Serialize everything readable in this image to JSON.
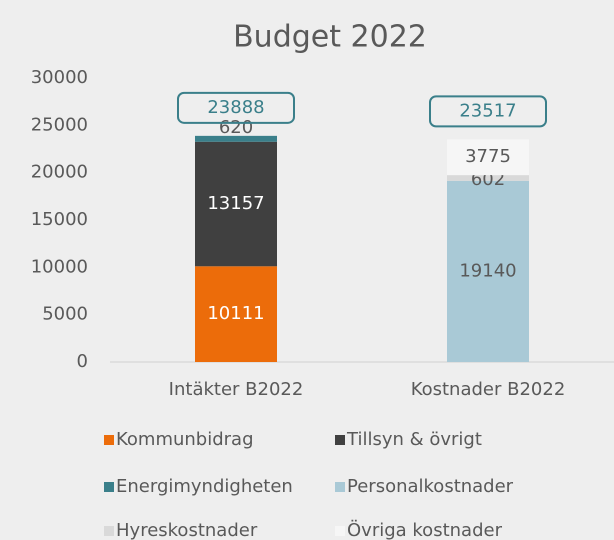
{
  "chart_data": {
    "type": "stacked_bar",
    "title": "Budget 2022",
    "categories": [
      "Intäkter B2022",
      "Kostnader B2022"
    ],
    "series": [
      {
        "name": "Kommunbidrag",
        "color": "#ec6c0a",
        "values": [
          10111,
          null
        ]
      },
      {
        "name": "Tillsyn & övrigt",
        "color": "#404040",
        "values": [
          13157,
          null
        ]
      },
      {
        "name": "Energimyndigheten",
        "color": "#3a7f8a",
        "values": [
          620,
          null
        ]
      },
      {
        "name": "Personalkostnader",
        "color": "#a9c9d6",
        "values": [
          null,
          19140
        ]
      },
      {
        "name": "Hyreskostnader",
        "color": "#d9d9d9",
        "values": [
          null,
          602
        ]
      },
      {
        "name": "Övriga kostnader",
        "color": "#f6f6f6",
        "values": [
          null,
          3775
        ]
      }
    ],
    "totals": [
      23888,
      23517
    ],
    "ylim": [
      0,
      30000
    ],
    "yticks": [
      0,
      5000,
      10000,
      15000,
      20000,
      25000,
      30000
    ],
    "grid": false
  }
}
